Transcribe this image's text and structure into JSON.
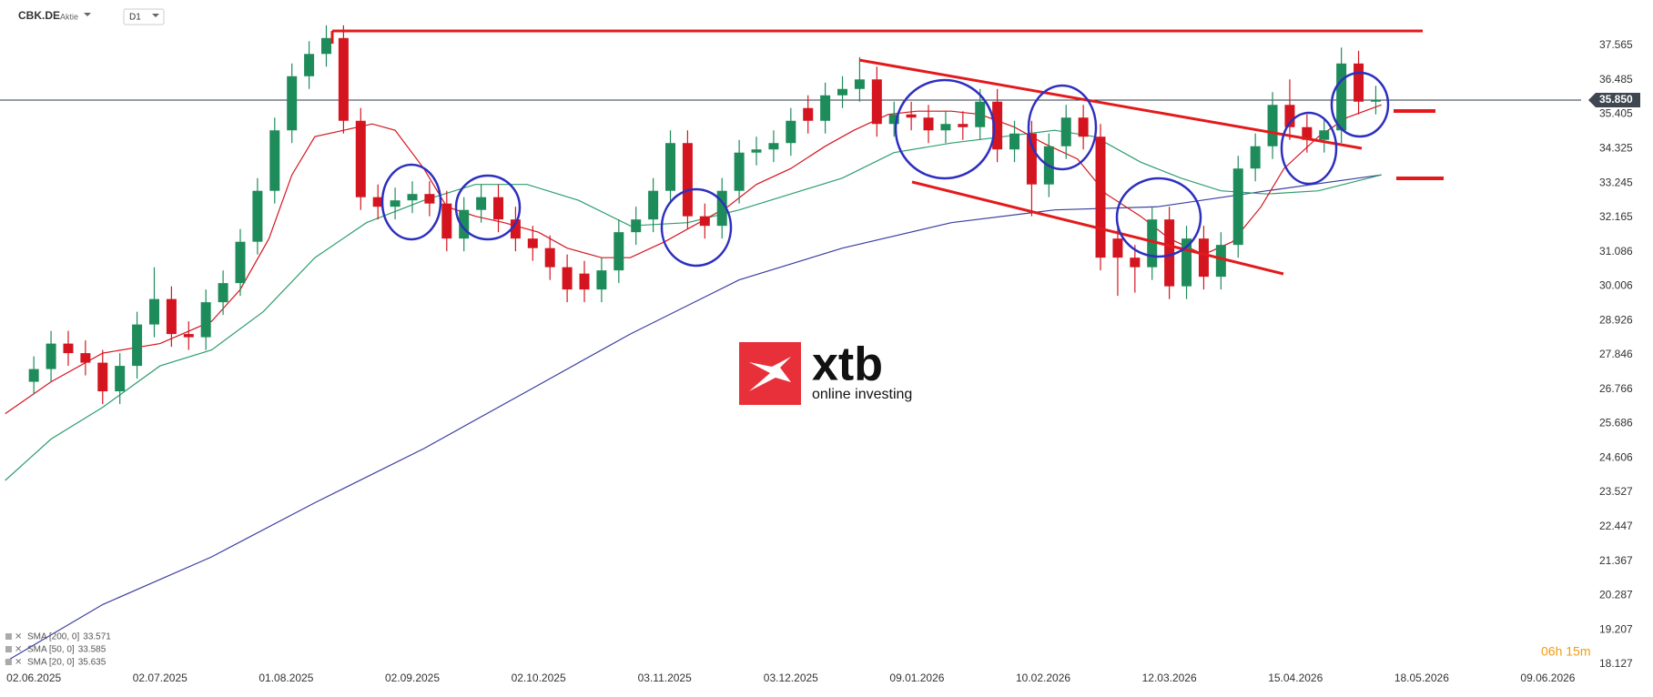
{
  "chart_data": {
    "type": "candlestick",
    "symbol": "CBK.DE",
    "instrument_type": "Aktie",
    "timeframe": "D1",
    "up_color": "#1e8c5a",
    "down_color": "#d4151f",
    "x": [
      0,
      3,
      6,
      9,
      12,
      15,
      18,
      21,
      24,
      27,
      30,
      33,
      36,
      39,
      42,
      45,
      48,
      51,
      54,
      57,
      60,
      63,
      66,
      69,
      72,
      75,
      78,
      81,
      84,
      87,
      90,
      93,
      96,
      99,
      102,
      105,
      108,
      111,
      114,
      117,
      120,
      123,
      126,
      129,
      132,
      135,
      138,
      141,
      144,
      147,
      150,
      153,
      156,
      159,
      162,
      165,
      168,
      171,
      174,
      177,
      180,
      183,
      186,
      189,
      192,
      195,
      198,
      201,
      204,
      207,
      210,
      213,
      216,
      219,
      222,
      225,
      228,
      231,
      234
    ],
    "open": [
      27.0,
      27.4,
      28.2,
      27.9,
      27.6,
      26.7,
      27.5,
      28.8,
      29.6,
      28.5,
      28.4,
      29.5,
      30.1,
      31.4,
      33.0,
      34.9,
      36.6,
      37.3,
      37.8,
      35.2,
      32.8,
      32.5,
      32.7,
      32.9,
      32.6,
      31.5,
      32.4,
      32.8,
      32.1,
      31.5,
      31.2,
      30.6,
      30.4,
      29.9,
      30.5,
      31.7,
      32.1,
      33.0,
      34.5,
      32.2,
      31.9,
      33.0,
      34.2,
      34.3,
      34.5,
      35.6,
      35.2,
      36.0,
      36.2,
      36.5,
      35.1,
      35.4,
      35.3,
      34.9,
      35.1,
      35.0,
      35.8,
      34.3,
      34.8,
      33.2,
      34.4,
      35.3,
      34.7,
      31.5,
      30.9,
      30.6,
      32.1,
      30.0,
      31.5,
      30.3,
      31.3,
      33.7,
      34.4,
      35.7,
      35.0,
      34.6,
      34.9,
      37.0,
      35.8
    ],
    "high": [
      27.8,
      28.6,
      28.6,
      28.3,
      28.0,
      27.9,
      29.2,
      30.6,
      30.0,
      28.9,
      29.9,
      30.5,
      31.8,
      33.4,
      35.3,
      37.0,
      37.7,
      38.2,
      38.2,
      35.6,
      33.2,
      33.1,
      33.3,
      33.3,
      33.0,
      32.8,
      33.2,
      33.2,
      32.5,
      31.9,
      31.6,
      31.0,
      30.8,
      30.9,
      32.1,
      32.5,
      33.4,
      34.9,
      34.9,
      32.6,
      33.4,
      34.6,
      34.7,
      34.9,
      35.6,
      36.0,
      36.4,
      36.6,
      37.2,
      36.9,
      35.8,
      35.8,
      35.7,
      35.5,
      35.5,
      36.2,
      36.2,
      35.2,
      35.2,
      34.8,
      35.7,
      35.7,
      35.1,
      31.9,
      31.3,
      32.5,
      32.5,
      31.9,
      31.9,
      31.7,
      34.1,
      34.8,
      36.1,
      36.5,
      35.4,
      35.3,
      37.5,
      37.4,
      36.3
    ],
    "low": [
      26.6,
      27.0,
      27.5,
      27.2,
      26.3,
      26.3,
      27.1,
      28.4,
      28.1,
      28.0,
      28.0,
      29.1,
      29.7,
      31.0,
      32.6,
      34.5,
      36.2,
      36.9,
      34.8,
      32.4,
      32.1,
      32.1,
      32.3,
      32.2,
      31.1,
      31.1,
      32.0,
      31.7,
      31.1,
      30.8,
      30.2,
      29.5,
      29.5,
      29.5,
      30.1,
      31.3,
      31.7,
      32.6,
      31.8,
      31.5,
      31.5,
      32.6,
      33.8,
      33.9,
      34.1,
      34.8,
      34.8,
      35.6,
      35.8,
      34.7,
      34.7,
      34.9,
      34.5,
      34.5,
      34.6,
      34.6,
      33.9,
      33.9,
      32.2,
      32.8,
      34.0,
      34.3,
      30.5,
      29.7,
      29.8,
      30.2,
      29.6,
      29.6,
      29.9,
      29.9,
      30.9,
      33.3,
      34.0,
      34.6,
      34.2,
      34.2,
      34.5,
      35.4,
      35.4
    ],
    "close": [
      27.4,
      28.2,
      27.9,
      27.6,
      26.7,
      27.5,
      28.8,
      29.6,
      28.5,
      28.4,
      29.5,
      30.1,
      31.4,
      33.0,
      34.9,
      36.6,
      37.3,
      37.8,
      35.2,
      32.8,
      32.5,
      32.7,
      32.9,
      32.6,
      31.5,
      32.4,
      32.8,
      32.1,
      31.5,
      31.2,
      30.6,
      29.9,
      29.9,
      30.5,
      31.7,
      32.1,
      33.0,
      34.5,
      32.2,
      31.9,
      33.0,
      34.2,
      34.3,
      34.5,
      35.2,
      35.2,
      36.0,
      36.2,
      36.5,
      35.1,
      35.4,
      35.3,
      34.9,
      35.1,
      35.0,
      35.8,
      34.3,
      34.8,
      33.2,
      34.4,
      35.3,
      34.7,
      30.9,
      30.9,
      30.6,
      32.1,
      30.0,
      31.5,
      30.3,
      31.3,
      33.7,
      34.4,
      35.7,
      35.0,
      34.6,
      34.9,
      37.0,
      35.8,
      35.85
    ],
    "lines": [
      {
        "name": "SMA [200, 0]",
        "last_value": 33.571,
        "color": "#3a3fa0",
        "x": [
          -5,
          12,
          31,
          49,
          68,
          86,
          104,
          123,
          141,
          160,
          178,
          196,
          215,
          235
        ],
        "values": [
          18.2,
          20.0,
          21.5,
          23.2,
          24.9,
          26.7,
          28.5,
          30.2,
          31.2,
          32.0,
          32.4,
          32.5,
          33.0,
          33.5
        ]
      },
      {
        "name": "SMA [50, 0]",
        "last_value": 33.585,
        "color": "#2e9d6e",
        "x": [
          -5,
          3,
          12,
          22,
          31,
          40,
          49,
          58,
          68,
          77,
          86,
          95,
          104,
          114,
          123,
          132,
          141,
          150,
          160,
          169,
          178,
          185,
          193,
          200,
          207,
          215,
          224,
          235
        ],
        "values": [
          23.9,
          25.2,
          26.2,
          27.5,
          28.0,
          29.2,
          30.9,
          32.0,
          32.7,
          33.2,
          33.2,
          32.7,
          31.9,
          32.0,
          32.4,
          32.9,
          33.4,
          34.2,
          34.5,
          34.7,
          34.9,
          34.7,
          33.9,
          33.4,
          33.0,
          32.9,
          33.0,
          33.5
        ]
      },
      {
        "name": "SMA [20, 0]",
        "last_value": 35.635,
        "color": "#d4151f",
        "x": [
          -5,
          3,
          12,
          22,
          31,
          36,
          41,
          45,
          49,
          54,
          59,
          63,
          68,
          72,
          77,
          82,
          88,
          93,
          99,
          104,
          110,
          115,
          121,
          126,
          132,
          138,
          143,
          149,
          154,
          160,
          165,
          171,
          176,
          182,
          187,
          193,
          198,
          204,
          209,
          214,
          218,
          224,
          229,
          235
        ],
        "values": [
          26.0,
          27.0,
          27.9,
          28.2,
          28.9,
          29.9,
          31.5,
          33.5,
          34.7,
          34.9,
          35.1,
          34.9,
          33.7,
          32.5,
          32.2,
          32.0,
          31.7,
          31.2,
          30.9,
          30.9,
          31.4,
          31.9,
          32.5,
          33.2,
          33.7,
          34.4,
          34.9,
          35.4,
          35.5,
          35.5,
          35.4,
          35.0,
          34.5,
          34.0,
          32.9,
          32.2,
          31.5,
          31.0,
          31.4,
          32.5,
          33.7,
          34.7,
          35.3,
          35.7
        ]
      }
    ],
    "last_price": {
      "value": 35.85,
      "label": "35.850"
    },
    "countdown": "06h 15m",
    "logo": {
      "brand": "xtb",
      "tagline": "online investing"
    },
    "xlim": [
      -5.9,
      269.8
    ],
    "xticks": [
      {
        "value": 0,
        "label": "02.06.2025"
      },
      {
        "value": 22,
        "label": "02.07.2025"
      },
      {
        "value": 44,
        "label": "01.08.2025"
      },
      {
        "value": 66,
        "label": "02.09.2025"
      },
      {
        "value": 88,
        "label": "02.10.2025"
      },
      {
        "value": 110,
        "label": "03.11.2025"
      },
      {
        "value": 132,
        "label": "03.12.2025"
      },
      {
        "value": 154,
        "label": "09.01.2026"
      },
      {
        "value": 176,
        "label": "10.02.2026"
      },
      {
        "value": 198,
        "label": "12.03.2026"
      },
      {
        "value": 220,
        "label": "15.04.2026"
      },
      {
        "value": 242,
        "label": "18.05.2026"
      },
      {
        "value": 264,
        "label": "09.06.2026"
      }
    ],
    "ylim": [
      17.84,
      38.28
    ],
    "yticks": [
      37.565,
      36.485,
      35.405,
      34.325,
      33.245,
      32.165,
      31.086,
      30.006,
      28.926,
      27.846,
      26.766,
      25.686,
      24.606,
      23.527,
      22.447,
      21.367,
      20.287,
      19.207,
      18.127
    ]
  }
}
